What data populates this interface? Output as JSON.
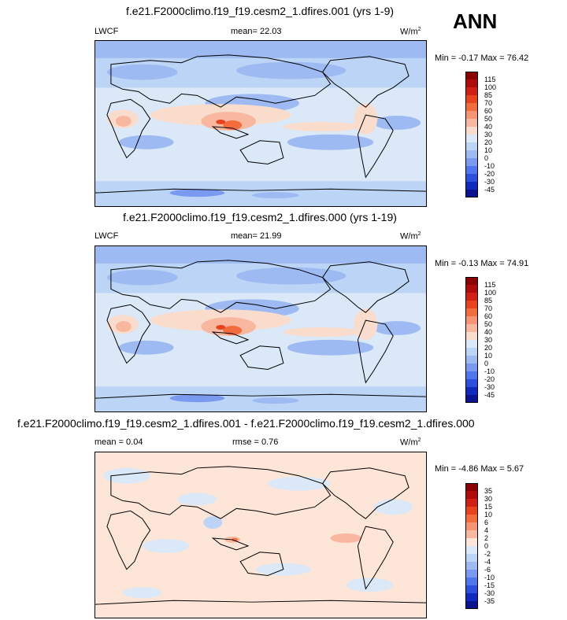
{
  "season": "ANN",
  "panels": [
    {
      "title": "f.e21.F2000climo.f19_f19.cesm2_1.dfires.001 (yrs 1-9)",
      "left_label": "LWCF",
      "center_label": "mean=  22.03",
      "units": "W/m",
      "units_exp": "2",
      "minmax": "Min =  -0.17 Max =  76.42",
      "colorbar_labels": [
        "115",
        "100",
        "85",
        "70",
        "60",
        "50",
        "40",
        "30",
        "20",
        "10",
        "0",
        "-10",
        "-20",
        "-30",
        "-45"
      ],
      "colorbar_colors": [
        "#8b0000",
        "#b00b0b",
        "#d11f16",
        "#e8431f",
        "#f26c3e",
        "#f69473",
        "#f8b8a0",
        "#fadccc",
        "#dbe8f7",
        "#bcd4f5",
        "#9dbaf2",
        "#7a9af0",
        "#4f76ec",
        "#2a50dd",
        "#1029bf",
        "#0a1490"
      ]
    },
    {
      "title": "f.e21.F2000climo.f19_f19.cesm2_1.dfires.000 (yrs 1-19)",
      "left_label": "LWCF",
      "center_label": "mean=  21.99",
      "units": "W/m",
      "units_exp": "2",
      "minmax": "Min =  -0.13 Max =  74.91",
      "colorbar_labels": [
        "115",
        "100",
        "85",
        "70",
        "60",
        "50",
        "40",
        "30",
        "20",
        "10",
        "0",
        "-10",
        "-20",
        "-30",
        "-45"
      ],
      "colorbar_colors": [
        "#8b0000",
        "#b00b0b",
        "#d11f16",
        "#e8431f",
        "#f26c3e",
        "#f69473",
        "#f8b8a0",
        "#fadccc",
        "#dbe8f7",
        "#bcd4f5",
        "#9dbaf2",
        "#7a9af0",
        "#4f76ec",
        "#2a50dd",
        "#1029bf",
        "#0a1490"
      ]
    },
    {
      "title": "f.e21.F2000climo.f19_f19.cesm2_1.dfires.001 - f.e21.F2000climo.f19_f19.cesm2_1.dfires.000",
      "left_label": "mean =   0.04",
      "center_label": "rmse =   0.76",
      "units": "W/m",
      "units_exp": "2",
      "minmax": "Min =  -4.86 Max =   5.67",
      "colorbar_labels": [
        "35",
        "30",
        "15",
        "10",
        "6",
        "4",
        "2",
        "0",
        "-2",
        "-4",
        "-6",
        "-10",
        "-15",
        "-30",
        "-35"
      ],
      "colorbar_colors": [
        "#8b0000",
        "#b00b0b",
        "#d11f16",
        "#e8431f",
        "#f26c3e",
        "#f69473",
        "#f8b8a0",
        "#fde6d8",
        "#dbe8f7",
        "#bcd4f5",
        "#9dbaf2",
        "#7a9af0",
        "#4f76ec",
        "#2a50dd",
        "#1029bf",
        "#0a1490"
      ]
    }
  ]
}
